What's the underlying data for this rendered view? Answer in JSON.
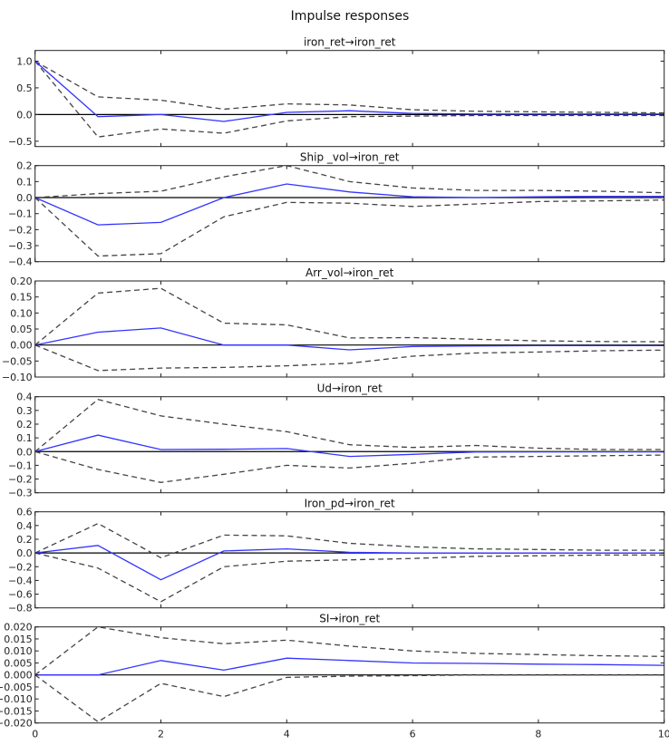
{
  "chart_data": {
    "type": "line",
    "title": "Impulse responses",
    "x_ticks": [
      "0",
      "2",
      "4",
      "6",
      "8",
      "10"
    ],
    "xlim": [
      0,
      10
    ],
    "grid": false,
    "x": [
      0,
      1,
      2,
      3,
      4,
      5,
      6,
      7,
      8,
      9,
      10
    ],
    "colors": {
      "response": "#3333ff",
      "bands": "#444444",
      "zero_line": "#000000"
    },
    "panels": [
      {
        "title": "iron_ret→iron_ret",
        "ylim": [
          -0.6,
          1.2
        ],
        "y_ticks": [
          1.0,
          0.5,
          0.0,
          -0.5
        ],
        "y_tick_labels": [
          "1.0",
          "0.5",
          "0.0",
          "−0.5"
        ],
        "response": [
          1.0,
          -0.04,
          0.0,
          -0.13,
          0.04,
          0.07,
          0.02,
          0.01,
          0.01,
          0.01,
          0.01
        ],
        "upper": [
          1.0,
          0.33,
          0.27,
          0.1,
          0.2,
          0.18,
          0.09,
          0.06,
          0.05,
          0.04,
          0.03
        ],
        "lower": [
          1.0,
          -0.42,
          -0.27,
          -0.35,
          -0.12,
          -0.04,
          -0.03,
          -0.02,
          -0.02,
          -0.02,
          -0.02
        ]
      },
      {
        "title": "Ship _vol→iron_ret",
        "ylim": [
          -0.4,
          0.2
        ],
        "y_ticks": [
          0.2,
          0.1,
          0.0,
          -0.1,
          -0.2,
          -0.3,
          -0.4
        ],
        "y_tick_labels": [
          "0.2",
          "0.1",
          "0.0",
          "−0.1",
          "−0.2",
          "−0.3",
          "−0.4"
        ],
        "response": [
          0,
          -0.17,
          -0.155,
          0.0,
          0.085,
          0.035,
          0.005,
          0.0,
          0.005,
          0.008,
          0.008
        ],
        "upper": [
          0,
          0.025,
          0.04,
          0.13,
          0.2,
          0.1,
          0.06,
          0.045,
          0.045,
          0.04,
          0.03
        ],
        "lower": [
          0,
          -0.365,
          -0.35,
          -0.12,
          -0.03,
          -0.035,
          -0.055,
          -0.04,
          -0.025,
          -0.02,
          -0.015
        ]
      },
      {
        "title": "Arr_vol→iron_ret",
        "ylim": [
          -0.1,
          0.2
        ],
        "y_ticks": [
          0.2,
          0.15,
          0.1,
          0.05,
          0.0,
          -0.05,
          -0.1
        ],
        "y_tick_labels": [
          "0.20",
          "0.15",
          "0.10",
          "0.05",
          "0.00",
          "−0.05",
          "−0.10"
        ],
        "response": [
          0,
          0.04,
          0.053,
          0.0,
          0.0,
          -0.015,
          -0.005,
          -0.003,
          -0.002,
          -0.002,
          -0.002
        ],
        "upper": [
          0,
          0.162,
          0.177,
          0.068,
          0.063,
          0.022,
          0.023,
          0.018,
          0.013,
          0.011,
          0.01
        ],
        "lower": [
          0,
          -0.08,
          -0.072,
          -0.07,
          -0.065,
          -0.057,
          -0.035,
          -0.025,
          -0.022,
          -0.018,
          -0.016
        ]
      },
      {
        "title": "Ud→iron_ret",
        "ylim": [
          -0.3,
          0.4
        ],
        "y_ticks": [
          0.4,
          0.3,
          0.2,
          0.1,
          0.0,
          -0.1,
          -0.2,
          -0.3
        ],
        "y_tick_labels": [
          "0.4",
          "0.3",
          "0.2",
          "0.1",
          "0.0",
          "−0.1",
          "−0.2",
          "−0.3"
        ],
        "response": [
          0,
          0.12,
          0.015,
          0.017,
          0.022,
          -0.035,
          -0.02,
          -0.003,
          -0.002,
          -0.002,
          -0.002
        ],
        "upper": [
          0,
          0.38,
          0.26,
          0.2,
          0.145,
          0.05,
          0.03,
          0.045,
          0.025,
          0.015,
          0.015
        ],
        "lower": [
          0,
          -0.13,
          -0.225,
          -0.165,
          -0.1,
          -0.12,
          -0.085,
          -0.04,
          -0.035,
          -0.03,
          -0.025
        ]
      },
      {
        "title": "Iron_pd→iron_ret",
        "ylim": [
          -0.8,
          0.6
        ],
        "y_ticks": [
          0.6,
          0.4,
          0.2,
          0.0,
          -0.2,
          -0.4,
          -0.6,
          -0.8
        ],
        "y_tick_labels": [
          "0.6",
          "0.4",
          "0.2",
          "0.0",
          "−0.2",
          "−0.4",
          "−0.6",
          "−0.8"
        ],
        "response": [
          0,
          0.11,
          -0.39,
          0.03,
          0.06,
          0.01,
          0.0,
          0.0,
          0.0,
          0.0,
          0.0
        ],
        "upper": [
          0,
          0.43,
          -0.07,
          0.26,
          0.25,
          0.14,
          0.09,
          0.06,
          0.05,
          0.04,
          0.04
        ],
        "lower": [
          0,
          -0.22,
          -0.71,
          -0.2,
          -0.12,
          -0.1,
          -0.08,
          -0.05,
          -0.04,
          -0.03,
          -0.03
        ]
      },
      {
        "title": "SI→iron_ret",
        "ylim": [
          -0.02,
          0.02
        ],
        "y_ticks": [
          0.02,
          0.015,
          0.01,
          0.005,
          0.0,
          -0.005,
          -0.01,
          -0.015,
          -0.02
        ],
        "y_tick_labels": [
          "0.020",
          "0.015",
          "0.010",
          "0.005",
          "0.000",
          "−0.005",
          "−0.010",
          "−0.015",
          "−0.020"
        ],
        "response": [
          0,
          0,
          0.006,
          0.002,
          0.007,
          0.006,
          0.005,
          0.0048,
          0.0045,
          0.0043,
          0.004
        ],
        "upper": [
          0,
          0.02,
          0.0155,
          0.013,
          0.0145,
          0.012,
          0.01,
          0.009,
          0.0085,
          0.008,
          0.0077
        ],
        "lower": [
          0,
          -0.0195,
          -0.0035,
          -0.009,
          -0.001,
          -0.0005,
          -0.0003,
          0,
          0,
          0,
          0
        ]
      }
    ]
  }
}
